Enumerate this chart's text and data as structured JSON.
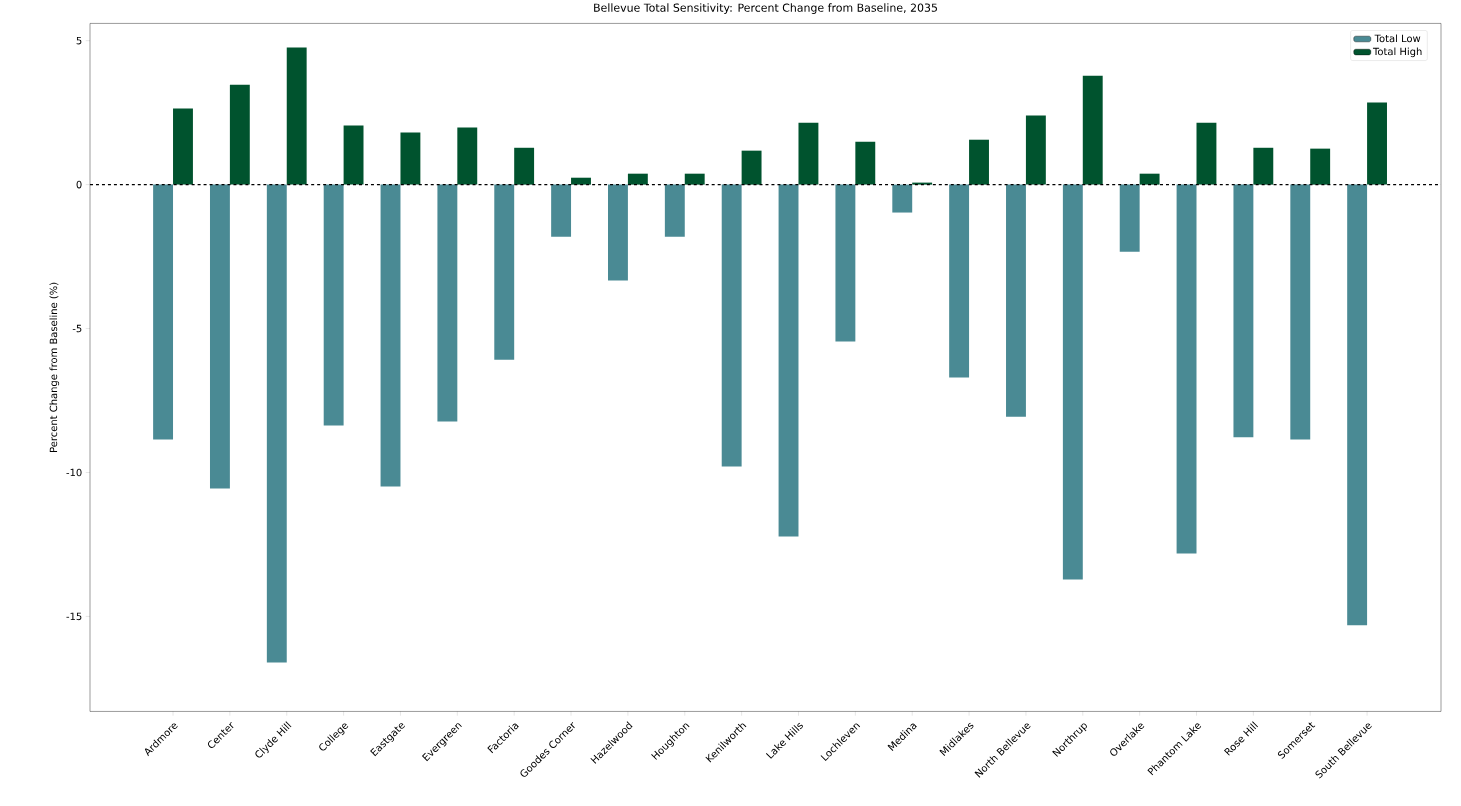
{
  "chart_data": {
    "type": "bar",
    "title": "Bellevue Total Sensitivity: Percent Change from Baseline, 2035",
    "ylabel": "Percent Change from Baseline (%)",
    "categories": [
      "Ardmore",
      "Center",
      "Clyde Hill",
      "College",
      "Eastgate",
      "Evergreen",
      "Factoria",
      "Goodes Corner",
      "Hazelwood",
      "Houghton",
      "Kenilworth",
      "Lake Hills",
      "Lochleven",
      "Medina",
      "Midlakes",
      "North Bellevue",
      "Northrup",
      "Overlake",
      "Phantom Lake",
      "Rose Hill",
      "Somerset",
      "South Bellevue"
    ],
    "series": [
      {
        "name": "Total Low",
        "color": "#4a8a94",
        "values": [
          -8.85,
          -10.56,
          -16.6,
          -8.37,
          -10.49,
          -8.23,
          -6.08,
          -1.81,
          -3.33,
          -1.81,
          -9.79,
          -12.22,
          -5.45,
          -0.97,
          -6.7,
          -8.06,
          -13.72,
          -2.33,
          -12.81,
          -8.78,
          -8.85,
          -15.31
        ]
      },
      {
        "name": "Total High",
        "color": "#00532e",
        "values": [
          2.64,
          3.47,
          4.76,
          2.05,
          1.81,
          1.98,
          1.28,
          0.24,
          0.38,
          0.38,
          1.18,
          2.15,
          1.49,
          0.07,
          1.56,
          2.4,
          3.78,
          0.38,
          2.15,
          1.28,
          1.25,
          2.85
        ]
      }
    ],
    "ylim": [
      -18.3,
      5.6
    ],
    "yticks": [
      -15,
      -10,
      -5,
      0,
      5
    ],
    "ref_lines": [
      {
        "axis": "y",
        "value": 0,
        "color": "#000000",
        "line_style": "dashed"
      }
    ],
    "legend": "top right",
    "grid": false
  }
}
